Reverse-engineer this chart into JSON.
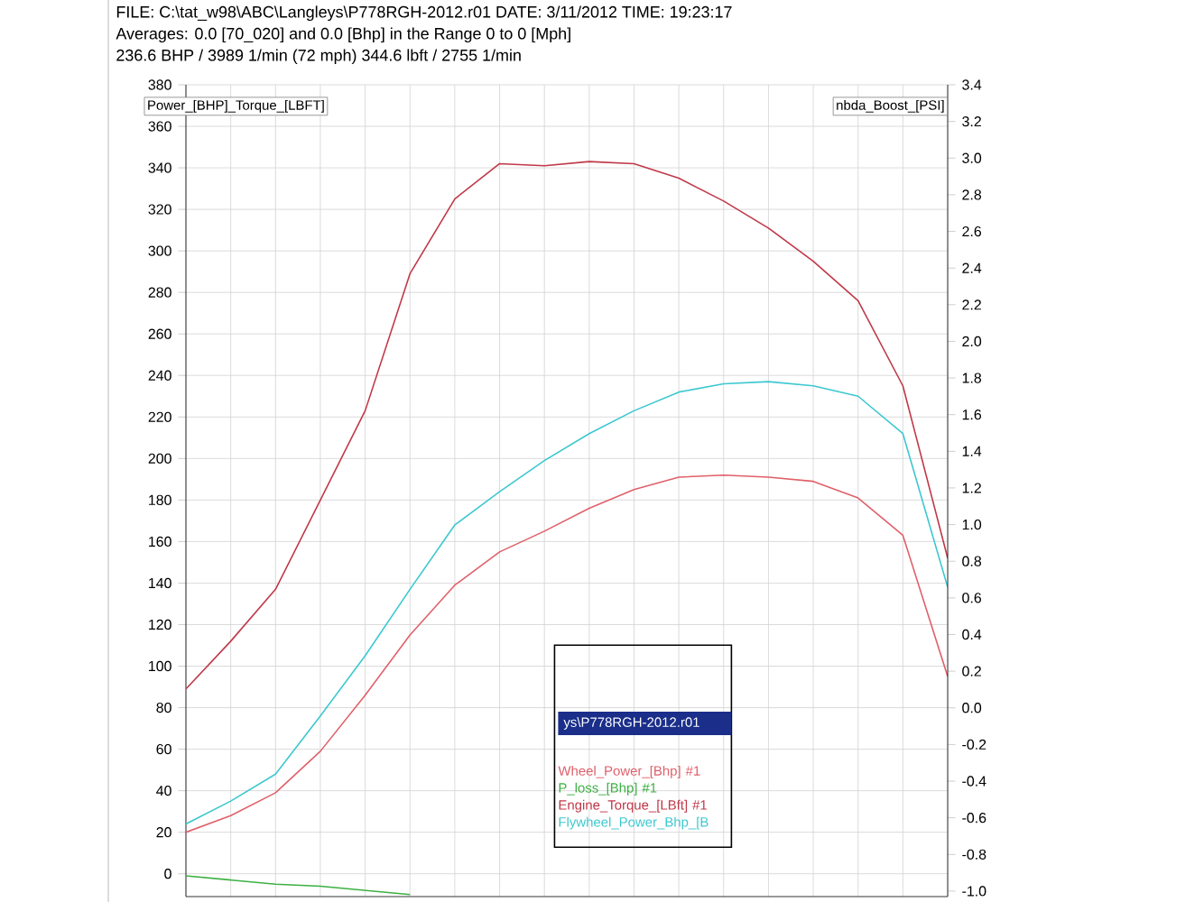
{
  "chart_data": {
    "type": "line",
    "title": "FILE: C:\\tat_w98\\ABC\\Langleys\\P778RGH-2012.r01  DATE: 3/11/2012  TIME: 19:23:17",
    "subtitle": "Averages:  0.0 [70_020]  and  0.0 [Bhp]  in the Range  0  to  0  [Mph]",
    "annotations": [
      "236.6 BHP / 3989 1/min (72 mph)    344.6 lbft / 2755 1/min"
    ],
    "ylabel": "Power_[BHP]_Torque_[LBFT]",
    "y2label": "nbda_Boost_[PSI]",
    "legend_title": "ys\\P778RGH-2012.r01",
    "categories": [
      null,
      null,
      null,
      null,
      null,
      null,
      null,
      null,
      null,
      null,
      null,
      null,
      null,
      null,
      null,
      null,
      null,
      null
    ],
    "series": [
      {
        "name": "Wheel_Power_[Bhp] #1",
        "color": "#e0606a",
        "values": [
          20,
          28,
          39,
          59,
          86,
          115,
          139,
          155,
          165,
          176,
          185,
          191,
          192,
          191,
          189,
          181,
          163,
          95
        ]
      },
      {
        "name": "P_loss_[Bhp] #1",
        "color": "#3cb043",
        "values": [
          -1,
          -3,
          -5,
          -6,
          -8,
          -10,
          null,
          null,
          null,
          null,
          null,
          null,
          null,
          null,
          null,
          null,
          null,
          null
        ]
      },
      {
        "name": "Engine_Torque_[LBft] #1",
        "color": "#c03848",
        "values": [
          89,
          112,
          137,
          180,
          223,
          289,
          325,
          342,
          341,
          343,
          342,
          335,
          324,
          311,
          295,
          276,
          235,
          152
        ]
      },
      {
        "name": "Flywheel_Power_Bhp_[B",
        "color": "#3cc8d0",
        "values": [
          24,
          35,
          48,
          76,
          105,
          137,
          168,
          184,
          199,
          212,
          223,
          232,
          236,
          237,
          235,
          230,
          212,
          138
        ]
      }
    ],
    "ylim": [
      -11,
      380
    ],
    "yticks": [
      0,
      20,
      40,
      60,
      80,
      100,
      120,
      140,
      160,
      180,
      200,
      220,
      240,
      260,
      280,
      300,
      320,
      340,
      360,
      380
    ],
    "y2lim": [
      -1.03,
      3.4
    ],
    "y2ticks": [
      3.4,
      3.2,
      {
        "value": 3,
        "label": "3.0"
      },
      2.8,
      2.6,
      2.4,
      2.2,
      {
        "value": 2,
        "label": "2.0"
      },
      1.8,
      1.6,
      1.4,
      1.2,
      {
        "value": 1,
        "label": "1.0"
      },
      0.8,
      0.6,
      0.4,
      0.2,
      {
        "value": 0,
        "label": "0.0"
      },
      -0.2,
      -0.4,
      -0.6,
      -0.8,
      {
        "value": -1,
        "label": "-1.0"
      }
    ],
    "grid": true,
    "legend": "bottom"
  }
}
